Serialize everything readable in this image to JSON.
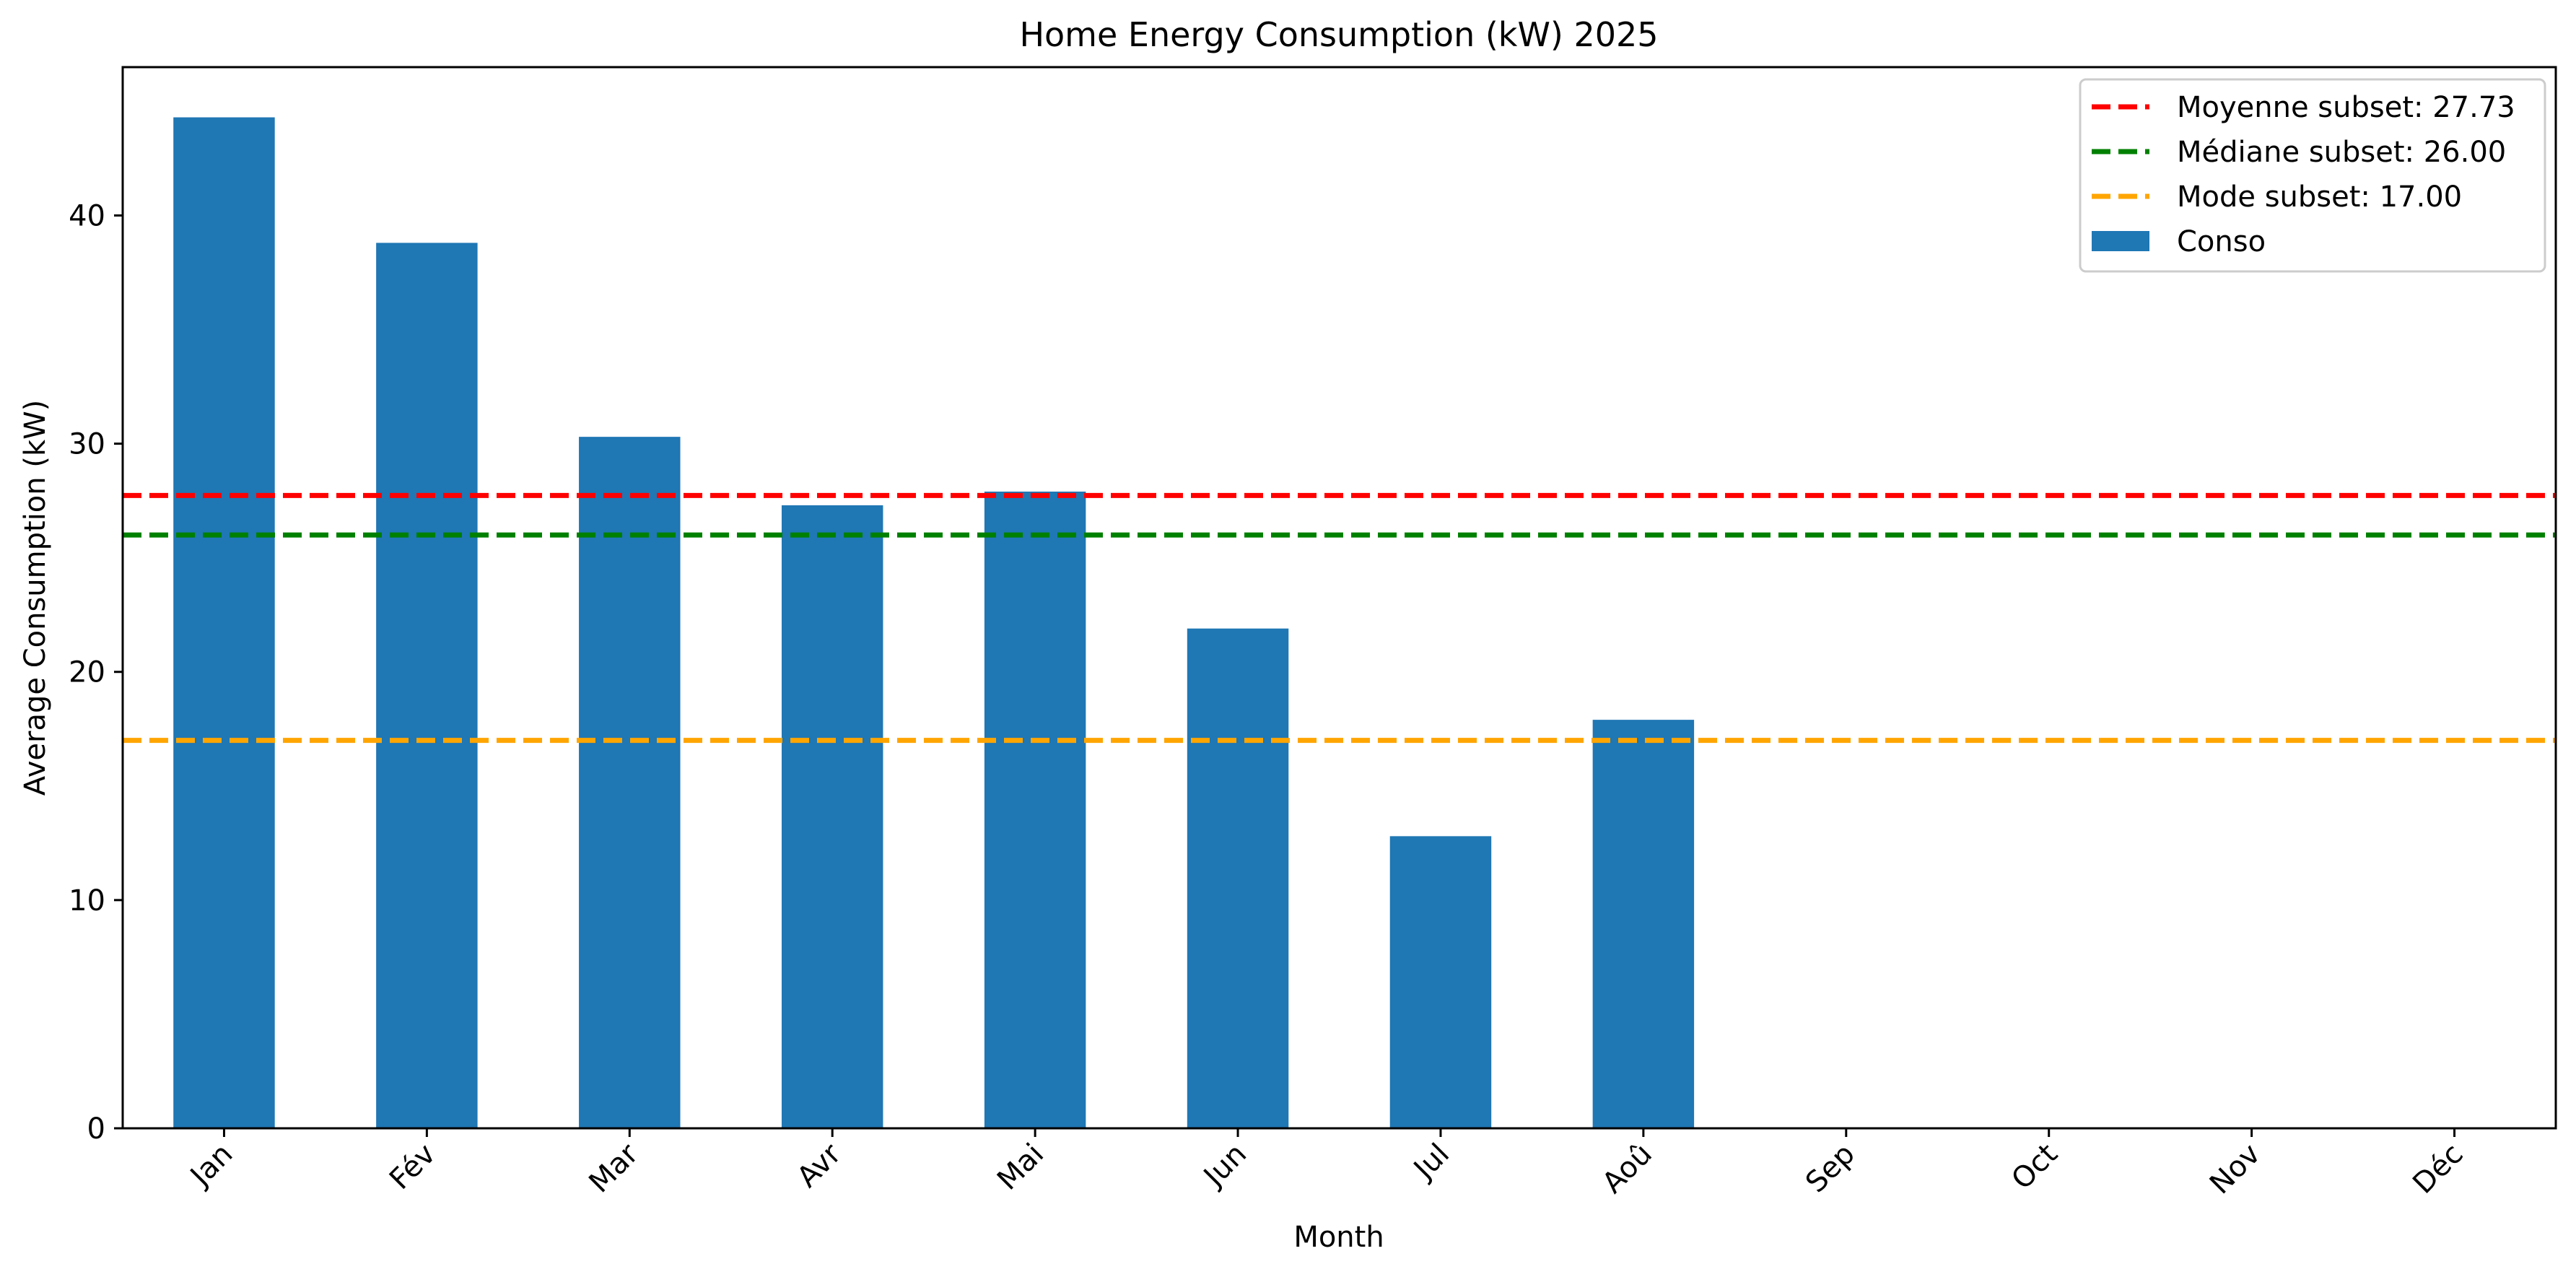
{
  "chart_data": {
    "type": "bar",
    "title": "Home Energy Consumption (kW) 2025",
    "xlabel": "Month",
    "ylabel": "Average Consumption (kW)",
    "categories": [
      "Jan",
      "Fév",
      "Mar",
      "Avr",
      "Mai",
      "Jun",
      "Jul",
      "Aoû",
      "Sep",
      "Oct",
      "Nov",
      "Déc"
    ],
    "series": [
      {
        "name": "Conso",
        "color": "#1f77b4",
        "values": [
          44.3,
          38.8,
          30.3,
          27.3,
          27.9,
          21.9,
          12.8,
          17.9,
          null,
          null,
          null,
          null
        ]
      }
    ],
    "reference_lines": [
      {
        "name": "Moyenne subset: 27.73",
        "value": 27.73,
        "color": "#ff0000",
        "style": "dashed"
      },
      {
        "name": "Médiane subset: 26.00",
        "value": 26.0,
        "color": "#008000",
        "style": "dashed"
      },
      {
        "name": "Mode subset: 17.00",
        "value": 17.0,
        "color": "#ffa500",
        "style": "dashed"
      }
    ],
    "ylim": [
      0,
      46.5
    ],
    "yticks": [
      0,
      10,
      20,
      30,
      40
    ],
    "legend_position": "top-right",
    "grid": false
  }
}
